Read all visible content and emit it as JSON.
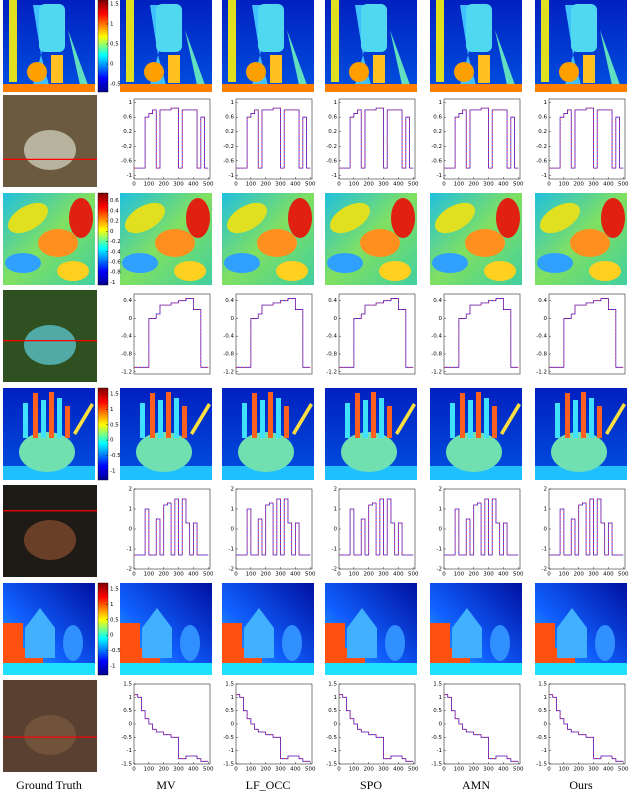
{
  "columns": [
    "Ground Truth",
    "MV",
    "LF_OCC",
    "SPO",
    "AMN",
    "Ours"
  ],
  "rows": [
    {
      "type": "depth",
      "colorbar_ticks": [
        1.5,
        1,
        0.5,
        0,
        -0.5
      ],
      "colorbar_lim": [
        -0.7,
        1.6
      ]
    },
    {
      "type": "profile",
      "ylim": [
        -1.1,
        1.1
      ],
      "yticks": [
        1,
        0.6,
        0.2,
        -0.2,
        -0.6,
        -1
      ],
      "xlim": [
        0,
        512
      ],
      "xticks": [
        0,
        100,
        200,
        300,
        400,
        500
      ],
      "x": [
        0,
        25,
        50,
        75,
        100,
        125,
        150,
        175,
        200,
        225,
        250,
        275,
        300,
        325,
        350,
        375,
        400,
        425,
        450,
        475,
        500
      ],
      "profile": [
        -0.8,
        -0.8,
        -0.8,
        0.6,
        0.7,
        0.8,
        -0.8,
        0.8,
        0.8,
        0.8,
        0.85,
        0.85,
        -0.8,
        0.8,
        0.8,
        0.8,
        0.8,
        -0.8,
        0.6,
        -0.8,
        -0.8
      ]
    },
    {
      "type": "depth",
      "colorbar_ticks": [
        0.6,
        0.4,
        0.2,
        0,
        -0.2,
        -0.4,
        -0.6,
        -0.8,
        -1
      ],
      "colorbar_lim": [
        -1.05,
        0.75
      ]
    },
    {
      "type": "profile",
      "ylim": [
        -1.25,
        0.55
      ],
      "yticks": [
        0.4,
        0,
        -0.4,
        -0.8,
        -1.2
      ],
      "xlim": [
        0,
        512
      ],
      "x": [
        0,
        25,
        50,
        75,
        100,
        125,
        150,
        175,
        200,
        225,
        250,
        275,
        300,
        325,
        350,
        375,
        400,
        425,
        450,
        475,
        500
      ],
      "profile": [
        -1.1,
        -1.1,
        -1.1,
        -1.1,
        0,
        0,
        0.1,
        0.3,
        0.3,
        0.3,
        0.35,
        0.35,
        0.4,
        0.4,
        0.45,
        0.45,
        0.2,
        0.2,
        -1.1,
        -1.1,
        -1.1
      ]
    },
    {
      "type": "depth",
      "colorbar_ticks": [
        1.5,
        1,
        0.5,
        0,
        -0.5,
        -1
      ],
      "colorbar_lim": [
        -1.3,
        1.7
      ]
    },
    {
      "type": "profile",
      "ylim": [
        -2,
        2
      ],
      "yticks": [
        2,
        1,
        0,
        -1,
        -2
      ],
      "xlim": [
        0,
        512
      ],
      "xticks": [
        0,
        100,
        200,
        300,
        400,
        500
      ],
      "x": [
        0,
        25,
        50,
        75,
        100,
        125,
        150,
        175,
        200,
        225,
        250,
        275,
        300,
        325,
        350,
        375,
        400,
        425,
        450,
        475,
        500
      ],
      "profile": [
        -1.3,
        -1.3,
        -1.3,
        1,
        -1.3,
        -1.3,
        0.5,
        -1.3,
        1.2,
        1.3,
        -1.3,
        1.5,
        -1.3,
        1.5,
        0.3,
        -1.3,
        0.3,
        -1.3,
        -1.3,
        -1.3,
        -1.3
      ]
    },
    {
      "type": "depth",
      "colorbar_ticks": [
        1.5,
        1,
        0.5,
        0,
        -0.5,
        -1
      ],
      "colorbar_lim": [
        -1.3,
        1.7
      ]
    },
    {
      "type": "profile",
      "ylim": [
        -1.5,
        1.5
      ],
      "yticks": [
        1.5,
        1,
        0.5,
        0,
        -0.5,
        -1,
        -1.5
      ],
      "xlim": [
        0,
        512
      ],
      "xticks": [
        0,
        100,
        200,
        300,
        400,
        500
      ],
      "x": [
        0,
        25,
        50,
        75,
        100,
        125,
        150,
        175,
        200,
        225,
        250,
        275,
        300,
        325,
        350,
        375,
        400,
        425,
        450,
        475,
        500
      ],
      "profile": [
        1.1,
        1,
        0.5,
        0.2,
        0,
        -0.2,
        -0.3,
        -0.3,
        -0.4,
        -0.4,
        -0.5,
        -0.5,
        -1.3,
        -1.3,
        -1.2,
        -1.2,
        -1.2,
        -1.3,
        -1.4,
        -1.4,
        -1.4
      ]
    }
  ]
}
